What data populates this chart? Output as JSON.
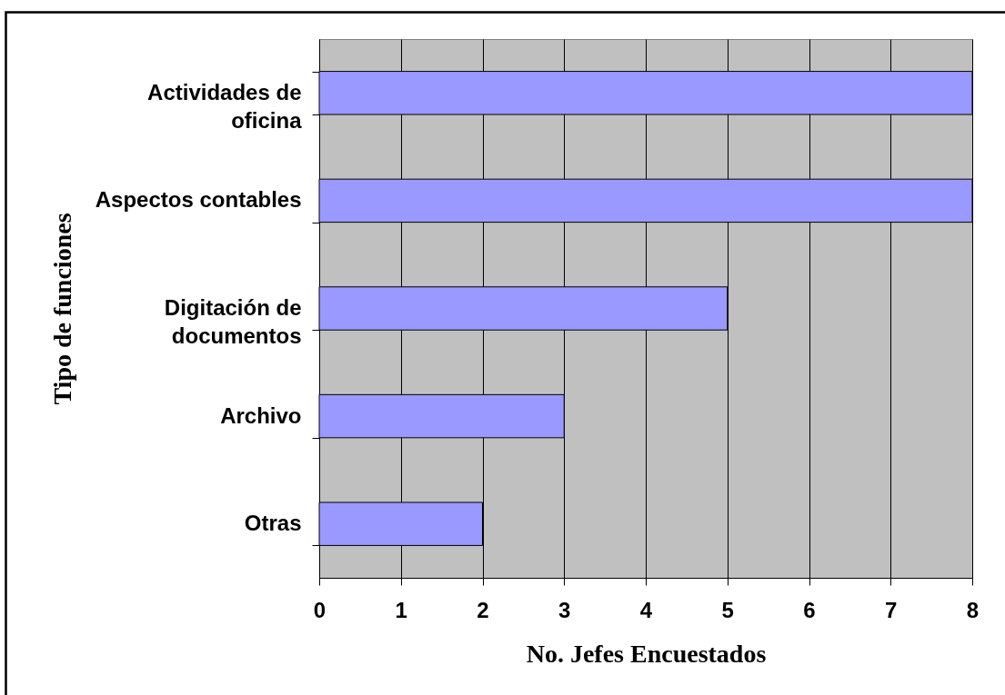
{
  "chart_data": {
    "type": "bar",
    "orientation": "horizontal",
    "xlabel": "No. Jefes Encuestados",
    "ylabel": "Tipo de funciones",
    "categories": [
      "Actividades de oficina",
      "Aspectos contables",
      "Digitación de documentos",
      "Archivo",
      "Otras"
    ],
    "values": [
      8,
      8,
      5,
      3,
      2
    ],
    "color": "#9999ff",
    "xlim": [
      0,
      8
    ],
    "xticks": [
      0,
      1,
      2,
      3,
      4,
      5,
      6,
      7,
      8
    ],
    "grid": "x"
  }
}
